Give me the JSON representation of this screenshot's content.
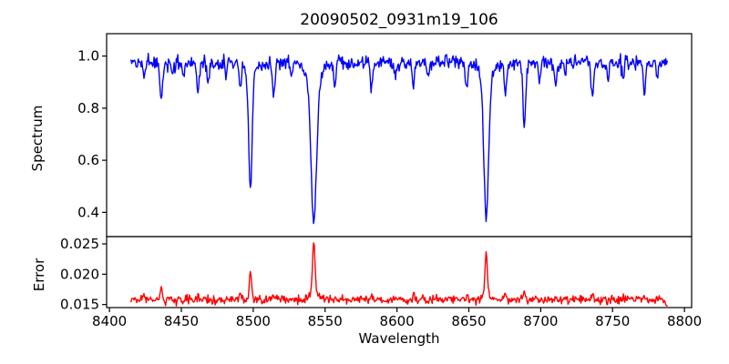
{
  "chart_data": {
    "type": "line",
    "title": "20090502_0931m19_106",
    "xlabel": "Wavelength",
    "background": "#ffffff",
    "axis_color": "#000000",
    "grid": false,
    "legend": "none",
    "xlim": [
      8398,
      8805
    ],
    "x_start": 8415,
    "x_end": 8788,
    "x_step": 0.5,
    "xticks": [
      8400,
      8450,
      8500,
      8550,
      8600,
      8650,
      8700,
      8750,
      8800
    ],
    "xtick_labels": [
      "8400",
      "8450",
      "8500",
      "8550",
      "8600",
      "8650",
      "8700",
      "8750",
      "8800"
    ],
    "subplots": [
      {
        "name": "spectrum",
        "ylabel": "Spectrum",
        "line_color": "#0000ff",
        "ylim": [
          0.307,
          1.086
        ],
        "ytick_values": [
          1.0,
          0.8,
          0.6,
          0.4
        ],
        "ytick_labels": [
          "1.0",
          "0.8",
          "0.6",
          "0.4"
        ],
        "model": {
          "kind": "absorption_spectrum",
          "continuum": 0.975,
          "noise_sigma": 0.013,
          "lines_format": [
            "center_wavelength",
            "depth",
            "sigma"
          ],
          "lines": [
            [
              8424.0,
              0.055,
              0.7
            ],
            [
              8436.0,
              0.15,
              0.9
            ],
            [
              8443.5,
              0.045,
              0.6
            ],
            [
              8451.5,
              0.055,
              0.7
            ],
            [
              8461.5,
              0.105,
              0.8
            ],
            [
              8468.5,
              0.085,
              0.7
            ],
            [
              8481.0,
              0.045,
              0.6
            ],
            [
              8491.0,
              0.105,
              0.8
            ],
            [
              8498.0,
              0.43,
              1.2
            ],
            [
              8498.0,
              0.05,
              3.0
            ],
            [
              8514.1,
              0.125,
              0.9
            ],
            [
              8526.5,
              0.05,
              0.7
            ],
            [
              8542.1,
              0.52,
              1.8
            ],
            [
              8542.1,
              0.1,
              4.5
            ],
            [
              8556.8,
              0.09,
              0.8
            ],
            [
              8582.3,
              0.095,
              0.8
            ],
            [
              8598.8,
              0.055,
              0.7
            ],
            [
              8611.5,
              0.1,
              0.8
            ],
            [
              8621.6,
              0.06,
              0.7
            ],
            [
              8648.5,
              0.1,
              0.8
            ],
            [
              8662.1,
              0.51,
              1.6
            ],
            [
              8662.1,
              0.085,
              4.0
            ],
            [
              8675.4,
              0.11,
              0.8
            ],
            [
              8688.6,
              0.235,
              1.0
            ],
            [
              8699.0,
              0.08,
              0.7
            ],
            [
              8710.4,
              0.09,
              0.8
            ],
            [
              8717.0,
              0.05,
              0.6
            ],
            [
              8736.0,
              0.125,
              0.9
            ],
            [
              8747.0,
              0.06,
              0.7
            ],
            [
              8757.1,
              0.07,
              0.7
            ],
            [
              8772.0,
              0.12,
              0.8
            ],
            [
              8781.0,
              0.055,
              0.7
            ]
          ]
        }
      },
      {
        "name": "error",
        "ylabel": "Error",
        "line_color": "#ff0000",
        "ylim": [
          0.0145,
          0.0262
        ],
        "ytick_values": [
          0.025,
          0.02,
          0.015
        ],
        "ytick_labels": [
          "0.025",
          "0.020",
          "0.015"
        ],
        "model": {
          "kind": "baseline_with_peaks",
          "baseline": 0.0158,
          "noise_sigma": 0.00035,
          "peaks_format": [
            "center_wavelength",
            "amplitude",
            "sigma"
          ],
          "peaks": [
            [
              8424.0,
              0.0011,
              0.7
            ],
            [
              8436.0,
              0.002,
              0.8
            ],
            [
              8461.5,
              0.0009,
              0.7
            ],
            [
              8491.0,
              0.0008,
              0.7
            ],
            [
              8498.0,
              0.0044,
              0.85
            ],
            [
              8514.1,
              0.0008,
              0.7
            ],
            [
              8542.1,
              0.0088,
              0.85
            ],
            [
              8542.1,
              0.0012,
              3.0
            ],
            [
              8582.3,
              0.0006,
              0.7
            ],
            [
              8611.5,
              0.0007,
              0.7
            ],
            [
              8648.5,
              0.0007,
              0.7
            ],
            [
              8662.1,
              0.0068,
              0.8
            ],
            [
              8662.1,
              0.0009,
              2.5
            ],
            [
              8675.4,
              0.0007,
              0.7
            ],
            [
              8688.6,
              0.0012,
              0.8
            ],
            [
              8710.4,
              0.0006,
              0.7
            ],
            [
              8736.0,
              0.0008,
              0.7
            ],
            [
              8772.0,
              0.0008,
              0.7
            ],
            [
              8790.0,
              -0.001,
              3.0
            ]
          ]
        }
      }
    ]
  }
}
